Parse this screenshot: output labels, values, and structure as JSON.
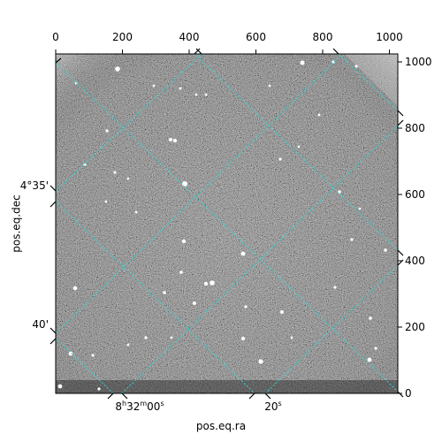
{
  "axes": {
    "xlabel": "pos.eq.ra",
    "ylabel": "pos.eq.dec",
    "top_ticks": [
      "0",
      "200",
      "400",
      "600",
      "800",
      "1000"
    ],
    "right_ticks": [
      "0",
      "200",
      "400",
      "600",
      "800",
      "1000"
    ],
    "bottom_ticks": [
      "8h32m00s",
      "20s"
    ],
    "left_ticks": [
      "4°35'",
      "40'"
    ]
  },
  "colors": {
    "grid": "#2fd6d6",
    "frame": "#000000",
    "background": "#ffffff"
  }
}
